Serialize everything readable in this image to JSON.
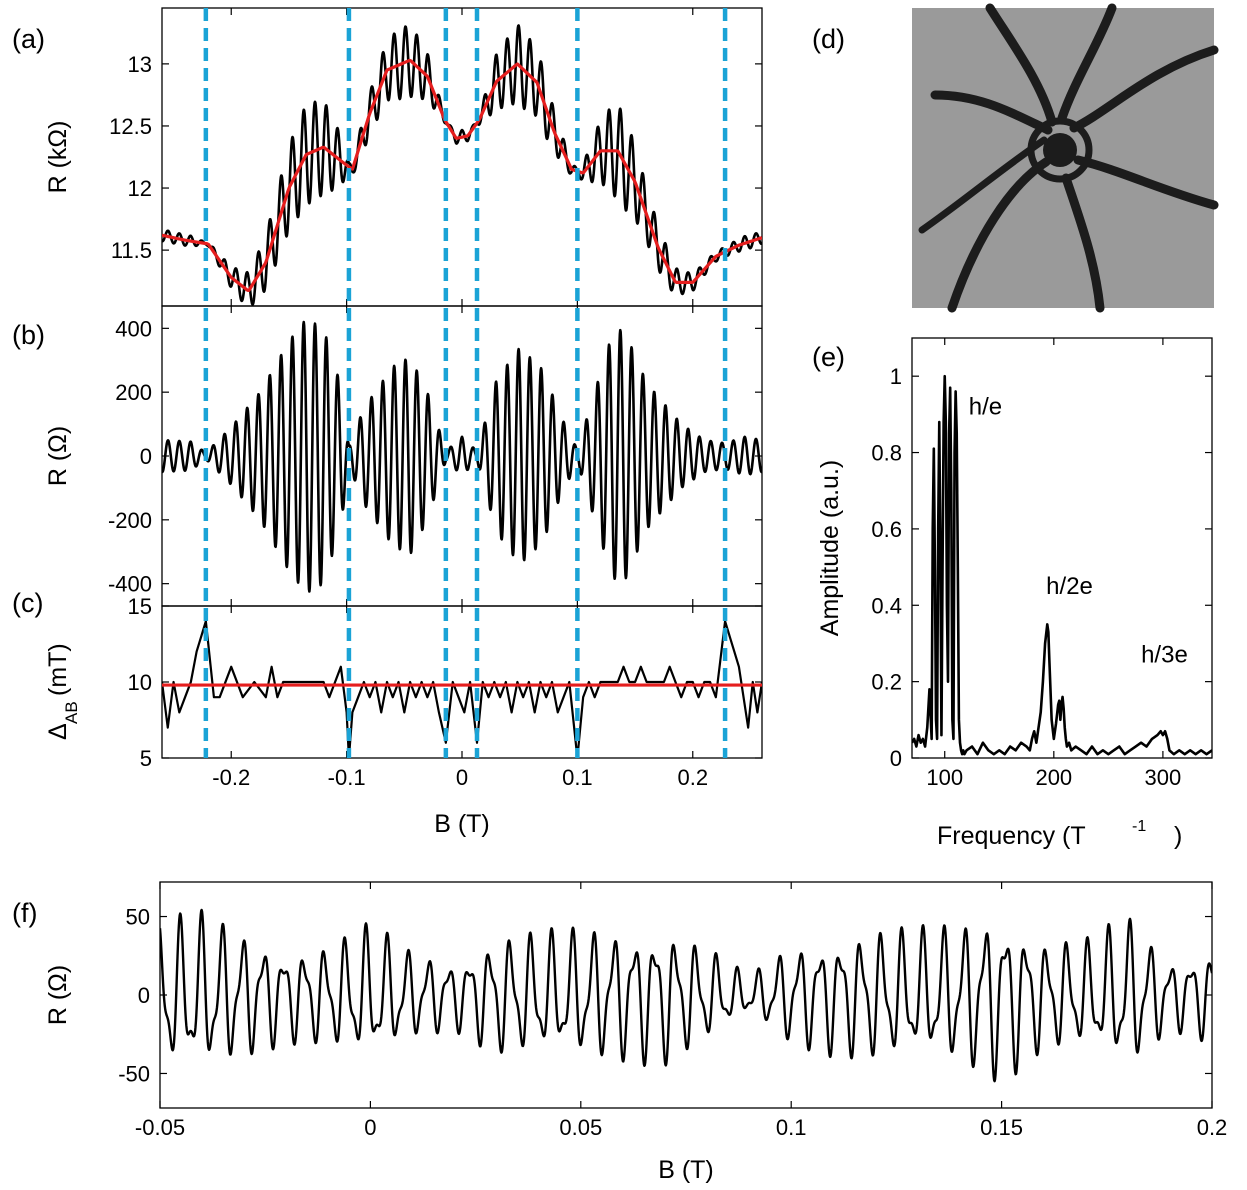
{
  "panel_labels": {
    "a": "(a)",
    "b": "(b)",
    "c": "(c)",
    "d": "(d)",
    "e": "(e)",
    "f": "(f)"
  },
  "colors": {
    "trace": "#000000",
    "fit": "#e51e1e",
    "dashed_markers": "#1aa3d6",
    "micrograph_bg": "#9a9a9a",
    "micrograph_dark": "#1c1c1c"
  },
  "image_d": {
    "icon": "sem-micrograph-ring-with-six-leads"
  },
  "chart_data": [
    {
      "id": "a",
      "type": "line",
      "xlim": [
        -0.26,
        0.26
      ],
      "ylim": [
        11.05,
        13.45
      ],
      "xticks": [
        -0.2,
        -0.1,
        0,
        0.1,
        0.2
      ],
      "yticks": [
        11.5,
        12,
        12.5,
        13
      ],
      "ytick_labels": [
        "11.5",
        "12",
        "12.5",
        "13"
      ],
      "ylabel": "R (kΩ)",
      "dashed_lines_x": [
        -0.222,
        -0.098,
        -0.014,
        0.013,
        0.1,
        0.228
      ],
      "series": [
        {
          "role": "raw trace",
          "color": "#000000",
          "oscillation_period_T": 0.0098,
          "approx_amplitude_kOhm": 0.42
        },
        {
          "role": "smoothed background",
          "color": "#e51e1e",
          "x": [
            -0.26,
            -0.24,
            -0.22,
            -0.2,
            -0.185,
            -0.17,
            -0.15,
            -0.135,
            -0.12,
            -0.105,
            -0.095,
            -0.08,
            -0.065,
            -0.045,
            -0.03,
            -0.015,
            -0.005,
            0.005,
            0.015,
            0.03,
            0.048,
            0.065,
            0.08,
            0.095,
            0.105,
            0.12,
            0.135,
            0.15,
            0.17,
            0.185,
            0.2,
            0.22,
            0.24,
            0.26
          ],
          "y": [
            11.62,
            11.58,
            11.55,
            11.28,
            11.17,
            11.4,
            12.0,
            12.27,
            12.33,
            12.22,
            12.15,
            12.6,
            12.95,
            13.03,
            12.9,
            12.55,
            12.4,
            12.42,
            12.55,
            12.86,
            13.0,
            12.85,
            12.45,
            12.15,
            12.12,
            12.3,
            12.3,
            12.05,
            11.52,
            11.24,
            11.24,
            11.45,
            11.54,
            11.6
          ]
        }
      ]
    },
    {
      "id": "b",
      "type": "line",
      "xlim": [
        -0.26,
        0.26
      ],
      "ylim": [
        -470,
        470
      ],
      "xticks": [
        -0.2,
        -0.1,
        0,
        0.1,
        0.2
      ],
      "yticks": [
        -400,
        -200,
        0,
        200,
        400
      ],
      "ytick_labels": [
        "-400",
        "-200",
        "0",
        "200",
        "400"
      ],
      "ylabel": "R (Ω)",
      "dashed_lines_x": [
        -0.222,
        -0.098,
        -0.014,
        0.013,
        0.1,
        0.228
      ],
      "series": [
        {
          "role": "oscillatory component",
          "color": "#000000",
          "oscillation_period_T": 0.0098,
          "envelope_x": [
            -0.26,
            -0.235,
            -0.222,
            -0.2,
            -0.175,
            -0.15,
            -0.135,
            -0.12,
            -0.105,
            -0.098,
            -0.085,
            -0.06,
            -0.045,
            -0.03,
            -0.014,
            0.0,
            0.013,
            0.03,
            0.05,
            0.07,
            0.085,
            0.1,
            0.115,
            0.13,
            0.14,
            0.16,
            0.19,
            0.21,
            0.228,
            0.245,
            0.26
          ],
          "envelope_y": [
            50,
            45,
            10,
            90,
            200,
            360,
            430,
            400,
            220,
            30,
            150,
            280,
            310,
            200,
            15,
            60,
            15,
            240,
            340,
            270,
            130,
            20,
            200,
            380,
            400,
            230,
            100,
            50,
            40,
            60,
            50
          ]
        }
      ]
    },
    {
      "id": "c",
      "type": "line",
      "xlim": [
        -0.26,
        0.26
      ],
      "ylim": [
        5,
        15
      ],
      "xticks": [
        -0.2,
        -0.1,
        0,
        0.1,
        0.2
      ],
      "xtick_labels": [
        "-0.2",
        "-0.1",
        "0",
        "0.1",
        "0.2"
      ],
      "yticks": [
        5,
        10,
        15
      ],
      "ytick_labels": [
        "5",
        "10",
        "15"
      ],
      "ylabel_main": "Δ",
      "ylabel_sub": "AB",
      "ylabel_unit": "(mT)",
      "xlabel": "B (T)",
      "dashed_lines_x": [
        -0.222,
        -0.098,
        -0.014,
        0.013,
        0.1,
        0.228
      ],
      "series": [
        {
          "role": "period spacing",
          "color": "#000000",
          "x": [
            -0.26,
            -0.255,
            -0.25,
            -0.245,
            -0.24,
            -0.235,
            -0.23,
            -0.222,
            -0.215,
            -0.21,
            -0.2,
            -0.19,
            -0.18,
            -0.17,
            -0.165,
            -0.16,
            -0.155,
            -0.15,
            -0.14,
            -0.13,
            -0.12,
            -0.115,
            -0.11,
            -0.105,
            -0.1,
            -0.098,
            -0.095,
            -0.09,
            -0.085,
            -0.08,
            -0.075,
            -0.07,
            -0.065,
            -0.06,
            -0.055,
            -0.05,
            -0.045,
            -0.04,
            -0.035,
            -0.03,
            -0.025,
            -0.02,
            -0.014,
            -0.008,
            -0.003,
            0.002,
            0.007,
            0.013,
            0.018,
            0.023,
            0.028,
            0.033,
            0.038,
            0.043,
            0.048,
            0.053,
            0.058,
            0.063,
            0.068,
            0.073,
            0.078,
            0.083,
            0.088,
            0.093,
            0.1,
            0.105,
            0.11,
            0.115,
            0.12,
            0.125,
            0.13,
            0.135,
            0.14,
            0.145,
            0.15,
            0.155,
            0.16,
            0.165,
            0.17,
            0.175,
            0.18,
            0.185,
            0.19,
            0.195,
            0.2,
            0.205,
            0.21,
            0.215,
            0.22,
            0.228,
            0.232,
            0.236,
            0.24,
            0.244,
            0.248,
            0.252,
            0.256,
            0.26
          ],
          "y": [
            10,
            7,
            10,
            8,
            9,
            10,
            12,
            14,
            9,
            9,
            11,
            9,
            10,
            9,
            11,
            9,
            10,
            10,
            10,
            10,
            10,
            9,
            10,
            11,
            8,
            5,
            8,
            9,
            10,
            9,
            10,
            8,
            10,
            9,
            10,
            8,
            10,
            9,
            10,
            9,
            10,
            8,
            6,
            10,
            9,
            8,
            10,
            6,
            10,
            9,
            10,
            9,
            10,
            8,
            10,
            9,
            10,
            8,
            10,
            9,
            10,
            8,
            9,
            10,
            5,
            9,
            10,
            9,
            10,
            10,
            10,
            10,
            11,
            10,
            10,
            11,
            10,
            10,
            10,
            10,
            11,
            10,
            9,
            10,
            10,
            9,
            10,
            10,
            9,
            14,
            13,
            12,
            11,
            9,
            7,
            10,
            8,
            10
          ]
        },
        {
          "role": "mean",
          "color": "#e51e1e",
          "x": [
            -0.26,
            0.26
          ],
          "y": [
            9.8,
            9.8
          ]
        }
      ]
    },
    {
      "id": "e",
      "type": "line",
      "xlim": [
        70,
        345
      ],
      "ylim": [
        0,
        1.1
      ],
      "xticks": [
        100,
        200,
        300
      ],
      "xtick_labels": [
        "100",
        "200",
        "300"
      ],
      "yticks": [
        0,
        0.2,
        0.4,
        0.6,
        0.8,
        1
      ],
      "ytick_labels": [
        "0",
        "0.2",
        "0.4",
        "0.6",
        "0.8",
        "1"
      ],
      "xlabel_main": "Frequency (T",
      "xlabel_sup": "-1",
      "xlabel_end": ")",
      "ylabel": "Amplitude (a.u.)",
      "annotations": [
        {
          "text": "h/e",
          "x": 122,
          "y": 0.9
        },
        {
          "text": "h/2e",
          "x": 193,
          "y": 0.43
        },
        {
          "text": "h/3e",
          "x": 280,
          "y": 0.25
        }
      ],
      "series": [
        {
          "role": "FFT amplitude",
          "color": "#000000",
          "x": [
            70,
            72,
            74,
            76,
            78,
            80,
            82,
            84,
            86,
            88,
            89,
            90,
            91,
            92,
            93,
            94,
            95,
            96,
            97,
            98,
            99,
            100,
            101,
            102,
            103,
            104,
            105,
            106,
            107,
            108,
            109,
            110,
            111,
            112,
            113,
            114,
            115,
            116,
            117,
            118,
            120,
            125,
            130,
            135,
            140,
            145,
            150,
            155,
            160,
            165,
            170,
            175,
            178,
            180,
            182,
            184,
            186,
            188,
            190,
            192,
            194,
            195,
            196,
            198,
            200,
            202,
            204,
            205,
            206,
            207,
            208,
            209,
            210,
            211,
            212,
            214,
            216,
            220,
            225,
            230,
            235,
            240,
            245,
            250,
            255,
            260,
            265,
            270,
            275,
            280,
            285,
            290,
            295,
            298,
            300,
            302,
            304,
            306,
            310,
            315,
            320,
            325,
            330,
            335,
            340,
            345
          ],
          "y": [
            0.04,
            0.05,
            0.03,
            0.06,
            0.04,
            0.05,
            0.03,
            0.08,
            0.18,
            0.05,
            0.6,
            0.81,
            0.5,
            0.1,
            0.05,
            0.6,
            0.88,
            0.55,
            0.06,
            0.5,
            0.88,
            1.0,
            0.88,
            0.4,
            0.2,
            0.85,
            0.97,
            0.7,
            0.1,
            0.05,
            0.8,
            0.96,
            0.85,
            0.5,
            0.1,
            0.04,
            0.02,
            0.01,
            0.02,
            0.01,
            0.02,
            0.03,
            0.01,
            0.04,
            0.02,
            0.01,
            0.02,
            0.01,
            0.03,
            0.02,
            0.04,
            0.03,
            0.02,
            0.05,
            0.07,
            0.04,
            0.08,
            0.12,
            0.2,
            0.3,
            0.35,
            0.33,
            0.25,
            0.1,
            0.05,
            0.09,
            0.14,
            0.15,
            0.1,
            0.14,
            0.16,
            0.13,
            0.08,
            0.05,
            0.03,
            0.04,
            0.02,
            0.03,
            0.02,
            0.01,
            0.03,
            0.01,
            0.02,
            0.01,
            0.02,
            0.03,
            0.01,
            0.02,
            0.03,
            0.04,
            0.03,
            0.05,
            0.06,
            0.07,
            0.06,
            0.07,
            0.05,
            0.02,
            0.01,
            0.02,
            0.01,
            0.02,
            0.01,
            0.02,
            0.01,
            0.02
          ]
        }
      ]
    },
    {
      "id": "f",
      "type": "line",
      "xlim": [
        -0.05,
        0.2
      ],
      "ylim": [
        -72,
        72
      ],
      "xticks": [
        -0.05,
        0,
        0.05,
        0.1,
        0.15,
        0.2
      ],
      "xtick_labels": [
        "-0.05",
        "0",
        "0.05",
        "0.1",
        "0.15",
        "0.2"
      ],
      "yticks": [
        -50,
        0,
        50
      ],
      "ytick_labels": [
        "-50",
        "0",
        "50"
      ],
      "xlabel": "B (T)",
      "ylabel": "R (Ω)",
      "series": [
        {
          "role": "oscillatory component (zoom)",
          "color": "#000000",
          "oscillation_period_T": 0.0049,
          "envelope_x": [
            -0.05,
            -0.04,
            -0.03,
            -0.02,
            -0.01,
            0.0,
            0.01,
            0.02,
            0.03,
            0.04,
            0.05,
            0.06,
            0.07,
            0.08,
            0.09,
            0.1,
            0.11,
            0.12,
            0.13,
            0.14,
            0.15,
            0.16,
            0.17,
            0.18,
            0.19,
            0.2
          ],
          "envelope_y": [
            48,
            52,
            40,
            30,
            32,
            45,
            28,
            22,
            38,
            40,
            42,
            42,
            44,
            30,
            12,
            32,
            38,
            42,
            42,
            45,
            55,
            35,
            35,
            50,
            22,
            30
          ]
        }
      ]
    }
  ]
}
